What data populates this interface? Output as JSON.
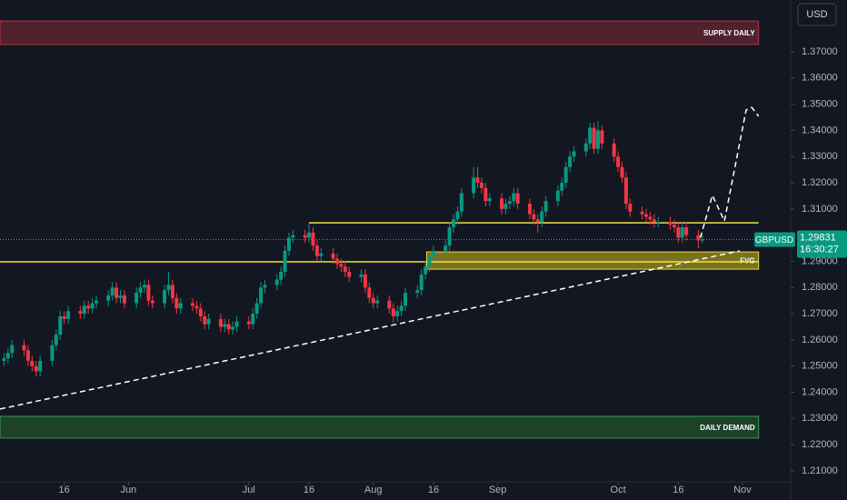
{
  "chart_data": {
    "type": "candlestick",
    "symbol": "GBPUSD",
    "currency": "USD",
    "last_price": 1.29831,
    "time_left": "16:30:27",
    "up_color": "#089981",
    "down_color": "#f23645",
    "xlim": [
      -1,
      196
    ],
    "ylim": [
      1.2058,
      1.3898
    ],
    "xticks": [
      {
        "value": 15,
        "label": "16"
      },
      {
        "value": 31,
        "label": "Jun"
      },
      {
        "value": 61,
        "label": "Jul"
      },
      {
        "value": 76,
        "label": "16"
      },
      {
        "value": 92,
        "label": "Aug"
      },
      {
        "value": 107,
        "label": "16"
      },
      {
        "value": 123,
        "label": "Sep"
      },
      {
        "value": 153,
        "label": "Oct"
      },
      {
        "value": 168,
        "label": "16"
      },
      {
        "value": 184,
        "label": "Nov"
      }
    ],
    "yticks": [
      {
        "value": 1.37,
        "label": "1.37000"
      },
      {
        "value": 1.36,
        "label": "1.36000"
      },
      {
        "value": 1.35,
        "label": "1.35000"
      },
      {
        "value": 1.34,
        "label": "1.34000"
      },
      {
        "value": 1.33,
        "label": "1.33000"
      },
      {
        "value": 1.32,
        "label": "1.32000"
      },
      {
        "value": 1.31,
        "label": "1.31000"
      },
      {
        "value": 1.29,
        "label": "1.29000"
      },
      {
        "value": 1.28,
        "label": "1.28000"
      },
      {
        "value": 1.27,
        "label": "1.27000"
      },
      {
        "value": 1.26,
        "label": "1.26000"
      },
      {
        "value": 1.25,
        "label": "1.25000"
      },
      {
        "value": 1.24,
        "label": "1.24000"
      },
      {
        "value": 1.23,
        "label": "1.23000"
      },
      {
        "value": 1.22,
        "label": "1.22000"
      },
      {
        "value": 1.21,
        "label": "1.21000"
      }
    ],
    "x": [
      0,
      1,
      2,
      5,
      6,
      7,
      8,
      9,
      12,
      13,
      14,
      15,
      16,
      19,
      20,
      21,
      22,
      23,
      26,
      27,
      28,
      29,
      30,
      33,
      34,
      35,
      36,
      37,
      40,
      41,
      42,
      43,
      44,
      47,
      48,
      49,
      50,
      51,
      54,
      55,
      56,
      57,
      58,
      61,
      62,
      63,
      64,
      65,
      68,
      69,
      70,
      71,
      72,
      75,
      76,
      77,
      78,
      79,
      82,
      83,
      84,
      85,
      86,
      89,
      90,
      91,
      92,
      93,
      96,
      97,
      98,
      99,
      100,
      103,
      104,
      105,
      106,
      107,
      110,
      111,
      112,
      113,
      114,
      117,
      118,
      119,
      120,
      121,
      124,
      125,
      126,
      127,
      128,
      131,
      132,
      133,
      134,
      135,
      138,
      139,
      140,
      141,
      142,
      145,
      146,
      147,
      148,
      149,
      152,
      153,
      154,
      155,
      156,
      159,
      160,
      161,
      162,
      163,
      166,
      167,
      168,
      169,
      170,
      173,
      174
    ],
    "open": [
      1.252,
      1.253,
      1.255,
      1.258,
      1.256,
      1.252,
      1.25,
      1.248,
      1.252,
      1.258,
      1.262,
      1.269,
      1.268,
      1.271,
      1.27,
      1.273,
      1.272,
      1.274,
      1.275,
      1.277,
      1.28,
      1.276,
      1.277,
      1.274,
      1.278,
      1.28,
      1.281,
      1.275,
      1.274,
      1.279,
      1.281,
      1.276,
      1.272,
      1.274,
      1.273,
      1.272,
      1.269,
      1.266,
      1.268,
      1.265,
      1.266,
      1.264,
      1.265,
      1.267,
      1.266,
      1.27,
      1.274,
      1.28,
      1.281,
      1.283,
      1.286,
      1.294,
      1.299,
      1.3,
      1.299,
      1.301,
      1.296,
      1.292,
      1.293,
      1.291,
      1.289,
      1.288,
      1.286,
      1.284,
      1.285,
      1.28,
      1.276,
      1.274,
      1.275,
      1.272,
      1.269,
      1.271,
      1.273,
      1.278,
      1.279,
      1.285,
      1.288,
      1.292,
      1.294,
      1.296,
      1.303,
      1.306,
      1.309,
      1.316,
      1.322,
      1.32,
      1.318,
      1.313,
      1.314,
      1.31,
      1.312,
      1.313,
      1.316,
      1.312,
      1.308,
      1.306,
      1.305,
      1.309,
      1.313,
      1.317,
      1.32,
      1.326,
      1.33,
      1.332,
      1.335,
      1.341,
      1.333,
      1.34,
      1.335,
      1.33,
      1.326,
      1.322,
      1.312,
      1.309,
      1.308,
      1.307,
      1.306,
      1.305,
      1.305,
      1.304,
      1.303,
      1.299,
      1.303,
      1.3,
      1.298
    ],
    "high": [
      1.255,
      1.257,
      1.26,
      1.26,
      1.258,
      1.254,
      1.252,
      1.254,
      1.26,
      1.264,
      1.271,
      1.271,
      1.273,
      1.273,
      1.275,
      1.275,
      1.276,
      1.277,
      1.279,
      1.282,
      1.282,
      1.279,
      1.279,
      1.28,
      1.282,
      1.283,
      1.283,
      1.277,
      1.281,
      1.286,
      1.283,
      1.278,
      1.276,
      1.276,
      1.275,
      1.274,
      1.271,
      1.27,
      1.27,
      1.268,
      1.268,
      1.267,
      1.269,
      1.269,
      1.272,
      1.276,
      1.282,
      1.283,
      1.285,
      1.288,
      1.296,
      1.301,
      1.302,
      1.302,
      1.3045,
      1.303,
      1.298,
      1.295,
      1.295,
      1.293,
      1.291,
      1.29,
      1.288,
      1.287,
      1.287,
      1.282,
      1.278,
      1.277,
      1.277,
      1.274,
      1.273,
      1.275,
      1.28,
      1.281,
      1.287,
      1.29,
      1.294,
      1.296,
      1.298,
      1.305,
      1.308,
      1.311,
      1.318,
      1.326,
      1.326,
      1.322,
      1.32,
      1.316,
      1.316,
      1.314,
      1.315,
      1.318,
      1.318,
      1.314,
      1.31,
      1.308,
      1.311,
      1.315,
      1.319,
      1.322,
      1.328,
      1.332,
      1.334,
      1.337,
      1.343,
      1.343,
      1.3435,
      1.342,
      1.337,
      1.332,
      1.328,
      1.324,
      1.314,
      1.311,
      1.31,
      1.309,
      1.308,
      1.307,
      1.307,
      1.306,
      1.305,
      1.305,
      1.305,
      1.302,
      1.3
    ],
    "low": [
      1.25,
      1.251,
      1.253,
      1.254,
      1.25,
      1.248,
      1.246,
      1.246,
      1.25,
      1.256,
      1.26,
      1.266,
      1.266,
      1.268,
      1.268,
      1.27,
      1.27,
      1.272,
      1.273,
      1.275,
      1.274,
      1.274,
      1.272,
      1.272,
      1.276,
      1.278,
      1.273,
      1.272,
      1.272,
      1.277,
      1.274,
      1.27,
      1.27,
      1.271,
      1.27,
      1.267,
      1.264,
      1.264,
      1.263,
      1.263,
      1.262,
      1.262,
      1.263,
      1.264,
      1.264,
      1.268,
      1.272,
      1.278,
      1.279,
      1.281,
      1.284,
      1.292,
      1.297,
      1.297,
      1.297,
      1.294,
      1.29,
      1.29,
      1.289,
      1.287,
      1.286,
      1.284,
      1.282,
      1.282,
      1.278,
      1.274,
      1.272,
      1.272,
      1.27,
      1.2665,
      1.267,
      1.269,
      1.271,
      1.276,
      1.277,
      1.283,
      1.286,
      1.29,
      1.292,
      1.294,
      1.301,
      1.304,
      1.307,
      1.314,
      1.318,
      1.316,
      1.311,
      1.311,
      1.308,
      1.308,
      1.31,
      1.311,
      1.31,
      1.306,
      1.304,
      1.301,
      1.303,
      1.307,
      1.311,
      1.315,
      1.318,
      1.324,
      1.328,
      1.33,
      1.333,
      1.331,
      1.331,
      1.333,
      1.328,
      1.324,
      1.32,
      1.31,
      1.307,
      1.306,
      1.305,
      1.304,
      1.303,
      1.303,
      1.302,
      1.301,
      1.297,
      1.297,
      1.298,
      1.295,
      1.297
    ],
    "close": [
      1.253,
      1.255,
      1.258,
      1.256,
      1.252,
      1.25,
      1.248,
      1.252,
      1.258,
      1.262,
      1.269,
      1.268,
      1.271,
      1.27,
      1.273,
      1.272,
      1.274,
      1.275,
      1.277,
      1.28,
      1.276,
      1.277,
      1.274,
      1.278,
      1.28,
      1.281,
      1.275,
      1.274,
      1.279,
      1.281,
      1.276,
      1.272,
      1.274,
      1.273,
      1.272,
      1.269,
      1.266,
      1.268,
      1.265,
      1.266,
      1.264,
      1.265,
      1.267,
      1.266,
      1.27,
      1.274,
      1.28,
      1.281,
      1.283,
      1.286,
      1.294,
      1.299,
      1.3,
      1.299,
      1.301,
      1.296,
      1.292,
      1.293,
      1.291,
      1.289,
      1.288,
      1.286,
      1.284,
      1.285,
      1.28,
      1.276,
      1.274,
      1.275,
      1.272,
      1.269,
      1.271,
      1.273,
      1.278,
      1.279,
      1.285,
      1.288,
      1.292,
      1.294,
      1.296,
      1.303,
      1.306,
      1.309,
      1.316,
      1.322,
      1.32,
      1.318,
      1.313,
      1.314,
      1.31,
      1.312,
      1.313,
      1.316,
      1.312,
      1.308,
      1.306,
      1.305,
      1.309,
      1.313,
      1.317,
      1.32,
      1.326,
      1.33,
      1.332,
      1.335,
      1.341,
      1.333,
      1.34,
      1.335,
      1.33,
      1.326,
      1.322,
      1.312,
      1.309,
      1.308,
      1.307,
      1.306,
      1.305,
      1.305,
      1.304,
      1.303,
      1.299,
      1.303,
      1.3,
      1.298,
      1.2983
    ],
    "zones": [
      {
        "label": "SUPPLY DAILY",
        "x": [
          -1,
          188
        ],
        "y": [
          1.3728,
          1.3818
        ],
        "fill": "#5c2530",
        "stroke": "#b5323f"
      },
      {
        "label": "FVG",
        "x": [
          105.3,
          188
        ],
        "y": [
          1.287,
          1.2936
        ],
        "fill": "#8c8420",
        "stroke": "#e8d63a"
      },
      {
        "label": "DAILY DEMAND",
        "x": [
          -1,
          188
        ],
        "y": [
          1.2225,
          1.2308
        ],
        "fill": "#1f4a2a",
        "stroke": "#3f9a4c"
      }
    ],
    "lines": [
      {
        "x": [
          76,
          188
        ],
        "y": [
          1.3047,
          1.3047
        ],
        "color": "#f2e23c",
        "dashed": false
      },
      {
        "x": [
          -1,
          188
        ],
        "y": [
          1.2898,
          1.2898
        ],
        "color": "#f2e23c",
        "dashed": false
      },
      {
        "x": [
          -1,
          183.3
        ],
        "y": [
          1.2336,
          1.294
        ],
        "color": "#ffffff",
        "dashed": true
      },
      {
        "x": [
          173.5,
          176.5,
          179.5,
          184.9,
          186.3,
          188
        ],
        "y": [
          1.299,
          1.3152,
          1.3054,
          1.3478,
          1.3488,
          1.3454
        ],
        "color": "#ffffff",
        "dashed": true
      }
    ]
  }
}
